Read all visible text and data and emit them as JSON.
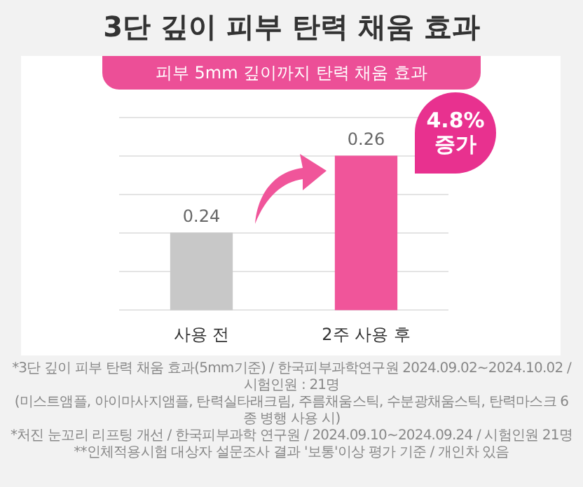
{
  "chart_data": {
    "type": "bar",
    "title": "3단 깊이 피부 탄력 채움 효과",
    "subtitle": "피부 5mm 깊이까지 탄력 채움 효과",
    "categories": [
      "사용 전",
      "2주 사용 후"
    ],
    "values": [
      0.24,
      0.26
    ],
    "colors": [
      "#c8c8c8",
      "#f0559a"
    ],
    "ylim": [
      0.22,
      0.27
    ],
    "yticks": [
      {
        "value": 0.22,
        "label": null
      },
      {
        "value": 0.23,
        "label": null
      },
      {
        "value": 0.24,
        "label": null
      },
      {
        "value": 0.25,
        "label": null
      },
      {
        "value": 0.26,
        "label": null
      },
      {
        "value": 0.27,
        "label": null
      }
    ],
    "grid": "y",
    "tick_labels": "x",
    "data_labels": true,
    "annotations": [
      "4.8% 증가",
      "*3단 깊이 피부 탄력 채움 효과(5mm기준) / 한국피부과학연구원  2024.09.02~2024.10.02 / 시험인원 : 21명",
      "(미스트앰플, 아이마사지앰플, 탄력실타래크림, 주름채움스틱, 수분광채움스틱, 탄력마스크 6종 병행 사용 시)",
      "*처진 눈꼬리 리프팅 개선 / 한국피부과학 연구원 / 2024.09.10~2024.09.24 / 시험인원 21명",
      "**인체적용시험 대상자 설문조사 결과 '보통'이상 평가 기준 / 개인차 있음"
    ]
  }
}
